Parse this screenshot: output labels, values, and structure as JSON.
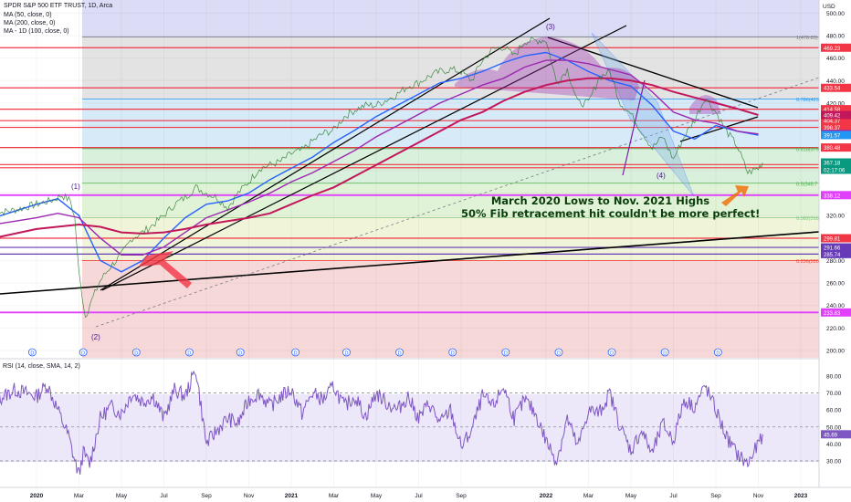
{
  "header": {
    "title": "SPDR S&P 500 ETF TRUST, 1D, Arca",
    "ma50": "MA (50, close, 0)",
    "ma200": "MA (200, close, 0)",
    "ma100": "MA - 1D (100, close, 0)",
    "currency": "USD"
  },
  "annotation": {
    "line1": "March 2020 Lows to Nov. 2021 Highs",
    "line2": "50% Fib retracement hit couldn't be more perfect!"
  },
  "rsi": {
    "label": "RSI (14, close, SMA, 14, 2)",
    "value": "45.69"
  },
  "chart_data": {
    "type": "line",
    "x_labels": [
      "2020",
      "Mar",
      "May",
      "Jul",
      "Sep",
      "Nov",
      "2021",
      "Mar",
      "May",
      "Jul",
      "Sep",
      "2022",
      "Mar",
      "May",
      "Jul",
      "Sep",
      "Nov",
      "2023"
    ],
    "x_tick_month_index": [
      0,
      2,
      4,
      6,
      8,
      10,
      12,
      14,
      16,
      18,
      20,
      24,
      26,
      28,
      30,
      32,
      34,
      36
    ],
    "price_axis": {
      "ticks": [
        200,
        220,
        240,
        260,
        280,
        300,
        320,
        340,
        360,
        380,
        400,
        420,
        440,
        460,
        480,
        500
      ],
      "range": [
        192,
        505
      ]
    },
    "rsi_axis": {
      "ticks": [
        30,
        40,
        50,
        60,
        70,
        80
      ],
      "range": [
        18,
        87
      ]
    },
    "fib_levels": [
      {
        "label": "1(478.83)",
        "value": 478.83,
        "color": "#787b86"
      },
      {
        "label": "0.786(423",
        "value": 423.6,
        "color": "#2196f3"
      },
      {
        "label": "0.618(379",
        "value": 379.5,
        "color": "#4caf50"
      },
      {
        "label": "0.5(348.7",
        "value": 348.7,
        "color": "#4caf50"
      },
      {
        "label": "0.382(318",
        "value": 318.0,
        "color": "#81c784"
      },
      {
        "label": "0.236(280",
        "value": 280.0,
        "color": "#f44336"
      }
    ],
    "price_levels": [
      {
        "label": "469.23",
        "value": 469.23,
        "color": "#f23645"
      },
      {
        "label": "433.54",
        "value": 433.54,
        "color": "#f23645"
      },
      {
        "label": "414.58",
        "value": 414.58,
        "color": "#f23645"
      },
      {
        "label": "404.37",
        "value": 404.37,
        "color": "#f23645"
      },
      {
        "label": "398.37",
        "value": 398.37,
        "color": "#f23645"
      },
      {
        "label": "380.48",
        "value": 380.48,
        "color": "#f23645"
      },
      {
        "label": "365.31",
        "value": 365.31,
        "color": "#f23645"
      },
      {
        "label": "362.48",
        "value": 362.48,
        "color": "#f23645"
      },
      {
        "label": "338.12",
        "value": 338.12,
        "color": "#e040fb"
      },
      {
        "label": "299.81",
        "value": 299.81,
        "color": "#f23645"
      },
      {
        "label": "291.66",
        "value": 291.66,
        "color": "#673ab7"
      },
      {
        "label": "285.74",
        "value": 285.74,
        "color": "#673ab7"
      },
      {
        "label": "233.83",
        "value": 233.83,
        "color": "#e040fb"
      }
    ],
    "ma_tags": [
      {
        "label": "409.42",
        "value": 409.42,
        "color": "#c2185b"
      },
      {
        "label": "392.47",
        "value": 392.47,
        "color": "#9c27b0"
      },
      {
        "label": "391.57",
        "value": 391.57,
        "color": "#2196f3"
      }
    ],
    "last_price": {
      "label": "367.18",
      "countdown": "02:17:06",
      "value": 367.18,
      "color": "#089981"
    },
    "wave_labels": [
      "(1)",
      "(2)",
      "(3)",
      "(4)"
    ],
    "price_series": [
      [
        -2,
        322
      ],
      [
        -1,
        325
      ],
      [
        0,
        330
      ],
      [
        0.8,
        334
      ],
      [
        1.2,
        338
      ],
      [
        1.6,
        333
      ],
      [
        1.8,
        318
      ],
      [
        2.0,
        268
      ],
      [
        2.3,
        230
      ],
      [
        2.5,
        240
      ],
      [
        3,
        262
      ],
      [
        3.5,
        275
      ],
      [
        4,
        285
      ],
      [
        4.5,
        300
      ],
      [
        5,
        305
      ],
      [
        5.5,
        312
      ],
      [
        6,
        320
      ],
      [
        6.5,
        330
      ],
      [
        7,
        336
      ],
      [
        7.5,
        345
      ],
      [
        8,
        340
      ],
      [
        8.5,
        336
      ],
      [
        9,
        327
      ],
      [
        9.5,
        340
      ],
      [
        10,
        350
      ],
      [
        10.5,
        362
      ],
      [
        11,
        365
      ],
      [
        11.5,
        368
      ],
      [
        12,
        375
      ],
      [
        12.5,
        378
      ],
      [
        13,
        386
      ],
      [
        13.5,
        393
      ],
      [
        14,
        396
      ],
      [
        14.5,
        408
      ],
      [
        15,
        414
      ],
      [
        15.5,
        418
      ],
      [
        16,
        418
      ],
      [
        16.5,
        423
      ],
      [
        17,
        428
      ],
      [
        17.5,
        435
      ],
      [
        18,
        438
      ],
      [
        18.5,
        444
      ],
      [
        19,
        448
      ],
      [
        19.5,
        450
      ],
      [
        20,
        448
      ],
      [
        20.5,
        440
      ],
      [
        21,
        458
      ],
      [
        21.5,
        468
      ],
      [
        22,
        470
      ],
      [
        22.5,
        462
      ],
      [
        23,
        475
      ],
      [
        24,
        476
      ],
      [
        24.5,
        438
      ],
      [
        25,
        450
      ],
      [
        25.5,
        420
      ],
      [
        26,
        420
      ],
      [
        26.5,
        443
      ],
      [
        27,
        448
      ],
      [
        27.5,
        420
      ],
      [
        28,
        410
      ],
      [
        28.5,
        395
      ],
      [
        29,
        380
      ],
      [
        29.5,
        390
      ],
      [
        30,
        370
      ],
      [
        30.5,
        390
      ],
      [
        31,
        405
      ],
      [
        31.5,
        425
      ],
      [
        32,
        412
      ],
      [
        32.5,
        395
      ],
      [
        33,
        382
      ],
      [
        33.5,
        358
      ],
      [
        34,
        362
      ],
      [
        34.2,
        367
      ]
    ],
    "ma_series": [
      {
        "name": "MA (50, close, 0)",
        "color": "#2962ff",
        "points": [
          [
            -2,
            318
          ],
          [
            0,
            330
          ],
          [
            1,
            335
          ],
          [
            2,
            320
          ],
          [
            3,
            280
          ],
          [
            4,
            270
          ],
          [
            5,
            280
          ],
          [
            6,
            300
          ],
          [
            7,
            318
          ],
          [
            8,
            330
          ],
          [
            9,
            333
          ],
          [
            10,
            340
          ],
          [
            11,
            352
          ],
          [
            12,
            362
          ],
          [
            13,
            372
          ],
          [
            14,
            385
          ],
          [
            15,
            396
          ],
          [
            16,
            408
          ],
          [
            17,
            418
          ],
          [
            18,
            428
          ],
          [
            19,
            438
          ],
          [
            20,
            442
          ],
          [
            21,
            448
          ],
          [
            22,
            456
          ],
          [
            23,
            462
          ],
          [
            24,
            465
          ],
          [
            25,
            458
          ],
          [
            26,
            448
          ],
          [
            27,
            440
          ],
          [
            28,
            435
          ],
          [
            29,
            418
          ],
          [
            30,
            395
          ],
          [
            31,
            388
          ],
          [
            32,
            400
          ],
          [
            33,
            395
          ],
          [
            34,
            391.57
          ]
        ]
      },
      {
        "name": "MA - 1D (100, close, 0)",
        "color": "#9c27b0",
        "points": [
          [
            -2,
            312
          ],
          [
            0,
            318
          ],
          [
            1,
            322
          ],
          [
            2,
            318
          ],
          [
            3,
            300
          ],
          [
            4,
            285
          ],
          [
            5,
            285
          ],
          [
            6,
            292
          ],
          [
            7,
            305
          ],
          [
            8,
            318
          ],
          [
            9,
            325
          ],
          [
            10,
            332
          ],
          [
            11,
            340
          ],
          [
            12,
            350
          ],
          [
            13,
            358
          ],
          [
            14,
            368
          ],
          [
            15,
            378
          ],
          [
            16,
            390
          ],
          [
            17,
            400
          ],
          [
            18,
            410
          ],
          [
            19,
            420
          ],
          [
            20,
            428
          ],
          [
            21,
            436
          ],
          [
            22,
            442
          ],
          [
            23,
            452
          ],
          [
            24,
            458
          ],
          [
            25,
            458
          ],
          [
            26,
            455
          ],
          [
            27,
            450
          ],
          [
            28,
            445
          ],
          [
            29,
            430
          ],
          [
            30,
            412
          ],
          [
            31,
            405
          ],
          [
            32,
            402
          ],
          [
            33,
            395
          ],
          [
            34,
            392.47
          ]
        ]
      },
      {
        "name": "MA (200, close, 0)",
        "color": "#c2185b",
        "points": [
          [
            -2,
            300
          ],
          [
            0,
            308
          ],
          [
            2,
            312
          ],
          [
            3,
            310
          ],
          [
            4,
            305
          ],
          [
            5,
            304
          ],
          [
            6,
            305
          ],
          [
            7,
            308
          ],
          [
            8,
            312
          ],
          [
            9,
            315
          ],
          [
            10,
            318
          ],
          [
            11,
            322
          ],
          [
            12,
            330
          ],
          [
            13,
            338
          ],
          [
            14,
            345
          ],
          [
            15,
            355
          ],
          [
            16,
            365
          ],
          [
            17,
            375
          ],
          [
            18,
            385
          ],
          [
            19,
            395
          ],
          [
            20,
            405
          ],
          [
            21,
            412
          ],
          [
            22,
            422
          ],
          [
            23,
            430
          ],
          [
            24,
            436
          ],
          [
            25,
            440
          ],
          [
            26,
            442
          ],
          [
            27,
            442
          ],
          [
            28,
            440
          ],
          [
            29,
            436
          ],
          [
            30,
            430
          ],
          [
            31,
            425
          ],
          [
            32,
            420
          ],
          [
            33,
            415
          ],
          [
            34,
            409.42
          ]
        ]
      }
    ],
    "rsi_series": [
      [
        -2,
        65
      ],
      [
        -1,
        72
      ],
      [
        0,
        68
      ],
      [
        0.5,
        75
      ],
      [
        1,
        60
      ],
      [
        1.5,
        45
      ],
      [
        1.8,
        30
      ],
      [
        2.0,
        22
      ],
      [
        2.2,
        35
      ],
      [
        2.5,
        28
      ],
      [
        3,
        55
      ],
      [
        3.5,
        62
      ],
      [
        4,
        58
      ],
      [
        4.5,
        70
      ],
      [
        5,
        65
      ],
      [
        5.5,
        68
      ],
      [
        6,
        55
      ],
      [
        6.5,
        72
      ],
      [
        7,
        68
      ],
      [
        7.5,
        84
      ],
      [
        8,
        40
      ],
      [
        8.5,
        48
      ],
      [
        9,
        55
      ],
      [
        9.5,
        52
      ],
      [
        10,
        66
      ],
      [
        10.5,
        70
      ],
      [
        11,
        62
      ],
      [
        11.5,
        68
      ],
      [
        12,
        72
      ],
      [
        12.5,
        58
      ],
      [
        13,
        70
      ],
      [
        13.5,
        66
      ],
      [
        14,
        74
      ],
      [
        14.5,
        62
      ],
      [
        15,
        68
      ],
      [
        15.5,
        56
      ],
      [
        16,
        70
      ],
      [
        16.5,
        64
      ],
      [
        17,
        60
      ],
      [
        17.5,
        68
      ],
      [
        18,
        55
      ],
      [
        18.5,
        64
      ],
      [
        19,
        52
      ],
      [
        19.5,
        60
      ],
      [
        20,
        38
      ],
      [
        20.5,
        48
      ],
      [
        21,
        68
      ],
      [
        21.5,
        62
      ],
      [
        22,
        74
      ],
      [
        22.5,
        55
      ],
      [
        23,
        66
      ],
      [
        23.5,
        58
      ],
      [
        24,
        42
      ],
      [
        24.5,
        30
      ],
      [
        25,
        55
      ],
      [
        25.5,
        38
      ],
      [
        26,
        60
      ],
      [
        26.5,
        58
      ],
      [
        27,
        70
      ],
      [
        27.5,
        50
      ],
      [
        28,
        36
      ],
      [
        28.5,
        48
      ],
      [
        29,
        34
      ],
      [
        29.5,
        52
      ],
      [
        30,
        42
      ],
      [
        30.5,
        66
      ],
      [
        31,
        62
      ],
      [
        31.5,
        74
      ],
      [
        32,
        60
      ],
      [
        32.5,
        44
      ],
      [
        33,
        34
      ],
      [
        33.5,
        28
      ],
      [
        34,
        40
      ],
      [
        34.2,
        45.69
      ]
    ]
  }
}
